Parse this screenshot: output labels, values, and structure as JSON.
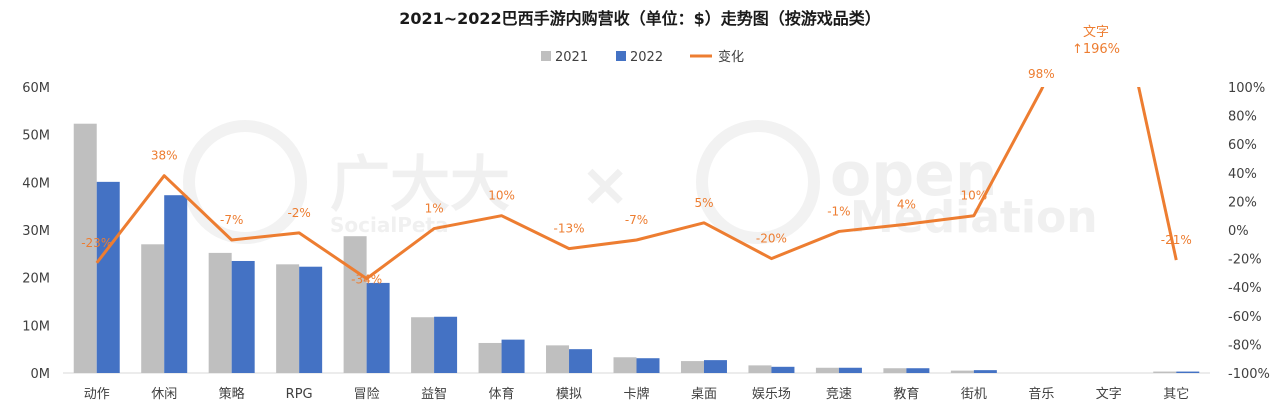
{
  "chart_data": {
    "type": "bar",
    "title": "2021~2022巴西手游内购营收（单位：$）走势图（按游戏品类）",
    "categories": [
      "动作",
      "休闲",
      "策略",
      "RPG",
      "冒险",
      "益智",
      "体育",
      "模拟",
      "卡牌",
      "桌面",
      "娱乐场",
      "竞速",
      "教育",
      "街机",
      "音乐",
      "文字",
      "其它"
    ],
    "series": [
      {
        "name": "2021",
        "type": "bar",
        "axis": "left",
        "color": "#BFBFBF",
        "values": [
          52.3,
          27.0,
          25.2,
          22.8,
          28.7,
          11.7,
          6.3,
          5.8,
          3.3,
          2.5,
          1.6,
          1.1,
          1.0,
          0.5,
          0.0,
          0.0,
          0.3
        ]
      },
      {
        "name": "2022",
        "type": "bar",
        "axis": "left",
        "color": "#4472C4",
        "values": [
          40.1,
          37.3,
          23.5,
          22.3,
          18.9,
          11.8,
          7.0,
          5.0,
          3.1,
          2.7,
          1.3,
          1.1,
          1.0,
          0.6,
          0.0,
          0.0,
          0.3
        ]
      },
      {
        "name": "变化",
        "type": "line",
        "axis": "right",
        "color": "#ED7D31",
        "values": [
          -23,
          38,
          -7,
          -2,
          -34,
          1,
          10,
          -13,
          -7,
          5,
          -20,
          -1,
          4,
          10,
          98,
          196,
          -21
        ]
      }
    ],
    "line_labels": [
      "-23%",
      "38%",
      "-7%",
      "-2%",
      "-34%",
      "1%",
      "10%",
      "-13%",
      "-7%",
      "5%",
      "-20%",
      "-1%",
      "4%",
      "10%",
      "98%",
      "",
      "-21%"
    ],
    "callout": {
      "line1": "文字",
      "line2": "↑196%"
    },
    "y_left": {
      "ylim": [
        0,
        60
      ],
      "ticks": [
        "0M",
        "10M",
        "20M",
        "30M",
        "40M",
        "50M",
        "60M"
      ]
    },
    "y_right": {
      "ylim": [
        -100,
        100
      ],
      "ticks": [
        "-100%",
        "-80%",
        "-60%",
        "-40%",
        "-20%",
        "0%",
        "20%",
        "40%",
        "60%",
        "80%",
        "100%"
      ]
    },
    "legend_placement": "top-center",
    "grid": false
  },
  "watermark": {
    "brand1": "广大大",
    "brand1_sub": "SocialPeta",
    "sep": "×",
    "brand2": "open",
    "brand2_sub": "Mediation"
  }
}
